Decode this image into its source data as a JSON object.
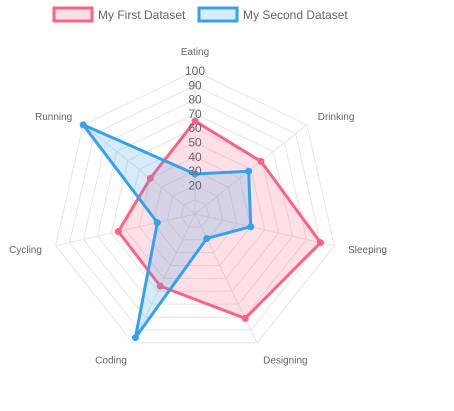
{
  "chart_data": {
    "type": "radar",
    "labels": [
      "Eating",
      "Drinking",
      "Sleeping",
      "Designing",
      "Coding",
      "Cycling",
      "Running"
    ],
    "r_ticks": [
      20,
      30,
      40,
      50,
      60,
      70,
      80,
      90,
      100
    ],
    "r_range": [
      0,
      100
    ],
    "grid": true,
    "legend_position": "top",
    "series": [
      {
        "name": "My First Dataset",
        "values": [
          65,
          59,
          90,
          81,
          56,
          55,
          40
        ],
        "border_color": "#ff6384",
        "fill_color": "rgba(255,99,132,0.2)"
      },
      {
        "name": "My Second Dataset",
        "values": [
          28,
          48,
          40,
          19,
          96,
          27,
          100
        ],
        "border_color": "#36a2eb",
        "fill_color": "rgba(54,162,235,0.2)"
      }
    ]
  }
}
